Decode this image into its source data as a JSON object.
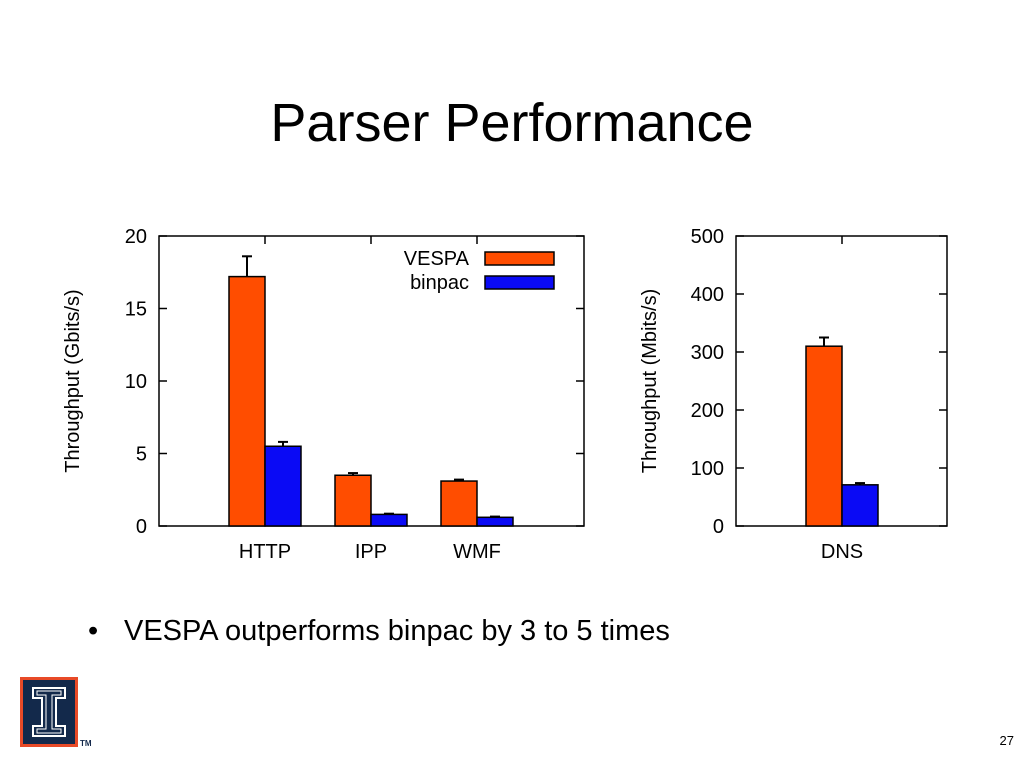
{
  "slide": {
    "title": "Parser Performance",
    "bullet": "VESPA outperforms binpac by 3 to 5 times",
    "page_number": "27",
    "logo": {
      "icon": "university-of-illinois-block-i-logo",
      "trademark": "TM"
    }
  },
  "colors": {
    "vespa": "#ff4d00",
    "binpac": "#0a0af5",
    "axis": "#000000"
  },
  "chart_data": [
    {
      "type": "bar",
      "title": "",
      "xlabel": "",
      "ylabel": "Throughput (Gbits/s)",
      "categories": [
        "HTTP",
        "IPP",
        "WMF"
      ],
      "series": [
        {
          "name": "VESPA",
          "values": [
            17.2,
            3.5,
            3.1
          ],
          "errors": [
            1.4,
            0.15,
            0.1
          ]
        },
        {
          "name": "binpac",
          "values": [
            5.5,
            0.8,
            0.6
          ],
          "errors": [
            0.3,
            0.05,
            0.05
          ]
        }
      ],
      "ylim": [
        0,
        20
      ],
      "yticks": [
        0,
        5,
        10,
        15,
        20
      ],
      "legend": "top-right",
      "grid": false
    },
    {
      "type": "bar",
      "title": "",
      "xlabel": "",
      "ylabel": "Throughput (Mbits/s)",
      "categories": [
        "DNS"
      ],
      "series": [
        {
          "name": "VESPA",
          "values": [
            310
          ],
          "errors": [
            15
          ]
        },
        {
          "name": "binpac",
          "values": [
            71
          ],
          "errors": [
            3
          ]
        }
      ],
      "ylim": [
        0,
        500
      ],
      "yticks": [
        0,
        100,
        200,
        300,
        400,
        500
      ],
      "legend": "none",
      "grid": false
    }
  ]
}
